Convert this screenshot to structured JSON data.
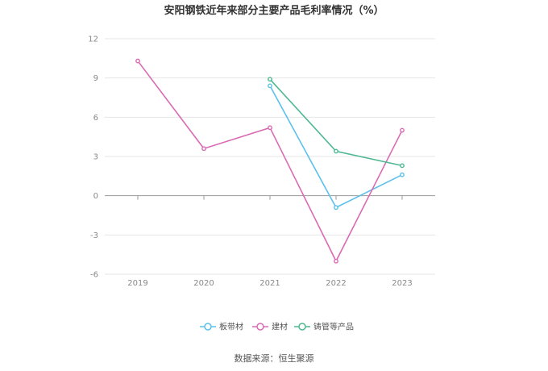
{
  "chart_data": {
    "type": "line",
    "title": "安阳钢铁近年来部分主要产品毛利率情况（%）",
    "categories": [
      "2019",
      "2020",
      "2021",
      "2022",
      "2023"
    ],
    "series": [
      {
        "name": "板带材",
        "color": "#5bc0eb",
        "values": [
          null,
          null,
          8.4,
          -0.9,
          1.6
        ]
      },
      {
        "name": "建材",
        "color": "#d96bb5",
        "values": [
          10.3,
          3.6,
          5.2,
          -5.0,
          5.0
        ]
      },
      {
        "name": "铸管等产品",
        "color": "#4db891",
        "values": [
          null,
          null,
          8.9,
          3.4,
          2.3
        ]
      }
    ],
    "ylim": [
      -6,
      12
    ],
    "yticks": [
      12,
      9,
      6,
      3,
      0,
      -3,
      -6
    ],
    "grid": true,
    "legend_position": "bottom-center",
    "source": "数据来源：恒生聚源"
  }
}
